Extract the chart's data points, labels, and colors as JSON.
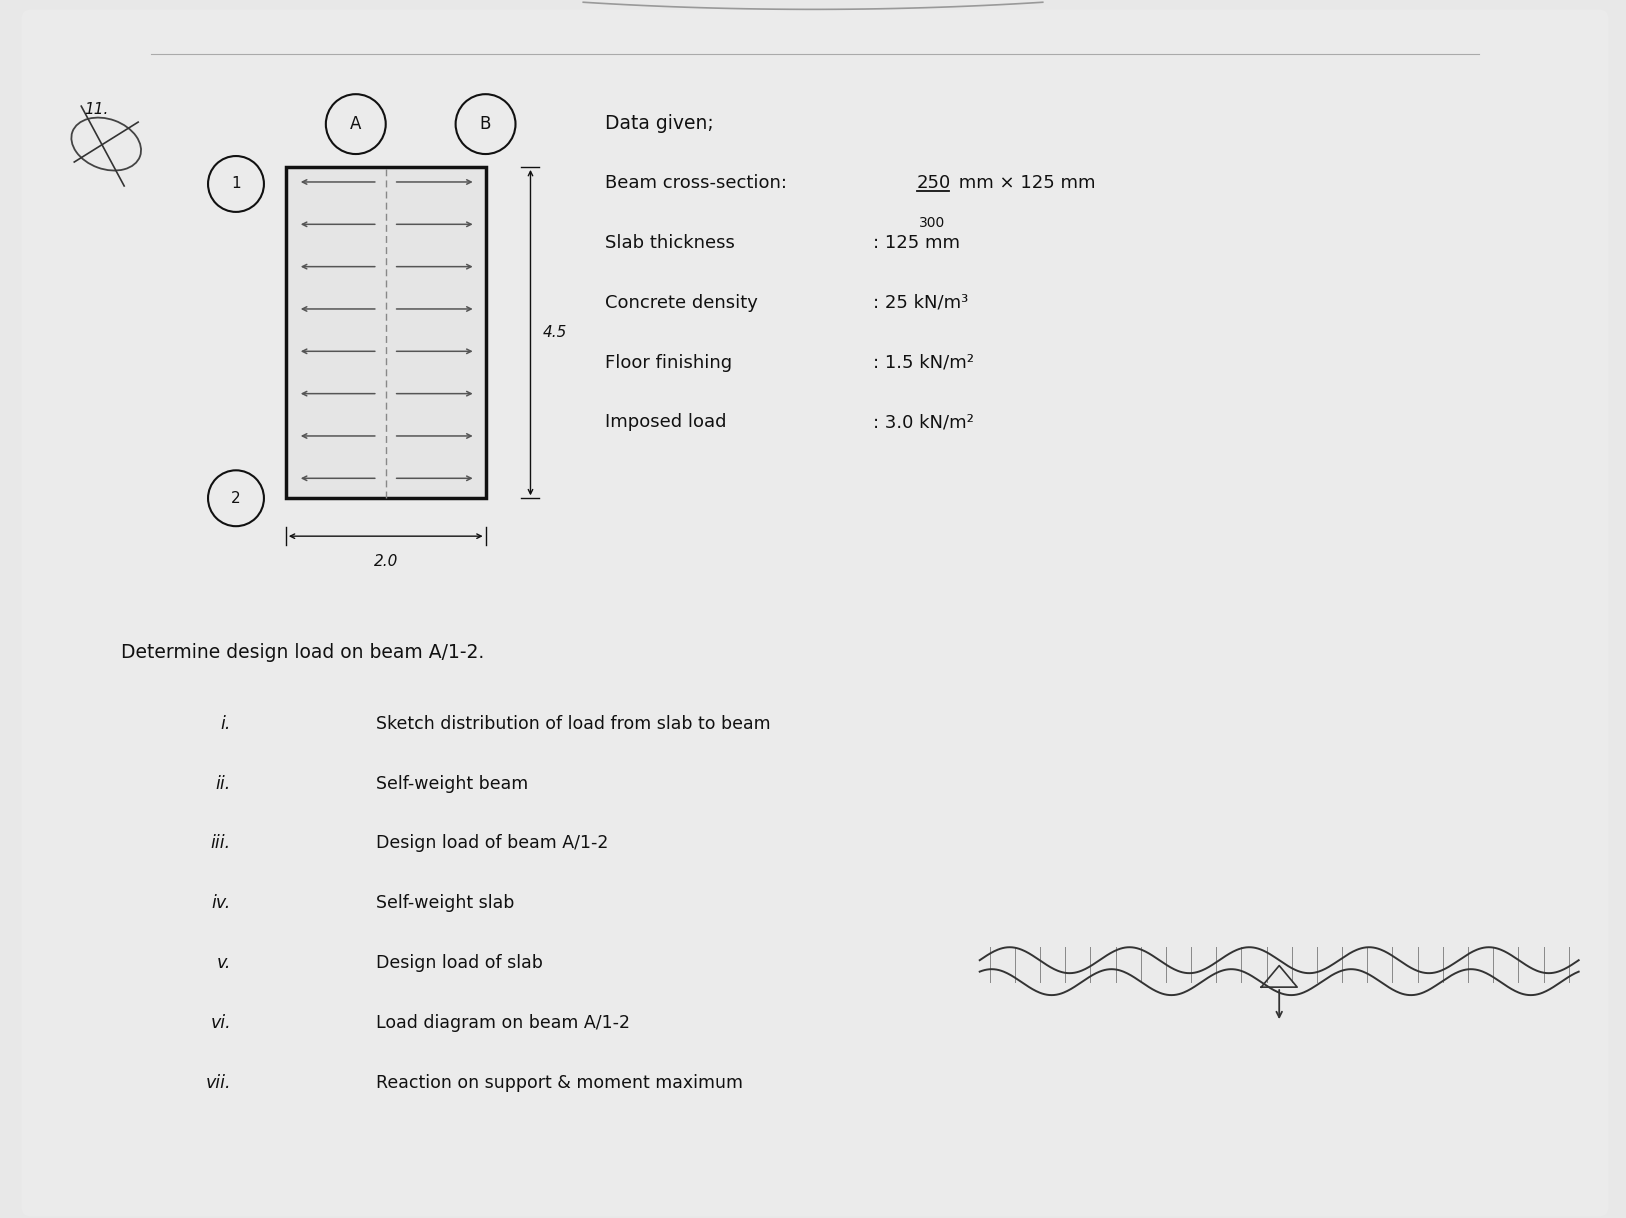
{
  "bg_color": "#e8e8e8",
  "inner_bg": "#e0e0e0",
  "text_color": "#1a1a1a",
  "dark_color": "#111111",
  "slab_dim_horiz": "2.0",
  "slab_dim_vert": "4.5",
  "data_given_title": "Data given;",
  "beam_cross_pre": "Beam cross-section: ",
  "beam_cross_strike": "250",
  "beam_cross_replace": "300",
  "beam_cross_post": " mm × 125 mm",
  "slab_thickness_label": "Slab thickness",
  "slab_thickness_val": ": 125 mm",
  "concrete_density_label": "Concrete density",
  "concrete_density_val": ": 25 kN/m³",
  "floor_finishing_label": "Floor finishing",
  "floor_finishing_val": ": 1.5 kN/m²",
  "imposed_load_label": "Imposed load",
  "imposed_load_val": ": 3.0 kN/m²",
  "determine_text": "Determine design load on beam A/1-2.",
  "item_nums": [
    "i.",
    "ii.",
    "iii.",
    "iv.",
    "v.",
    "vi.",
    "vii."
  ],
  "item_texts": [
    "Sketch distribution of load from slab to beam",
    "Self-weight beam",
    "Design load of beam A/1-2",
    "Self-weight slab",
    "Design load of slab",
    "Load diagram on beam A/1-2",
    "Reaction on support & moment maximum"
  ]
}
